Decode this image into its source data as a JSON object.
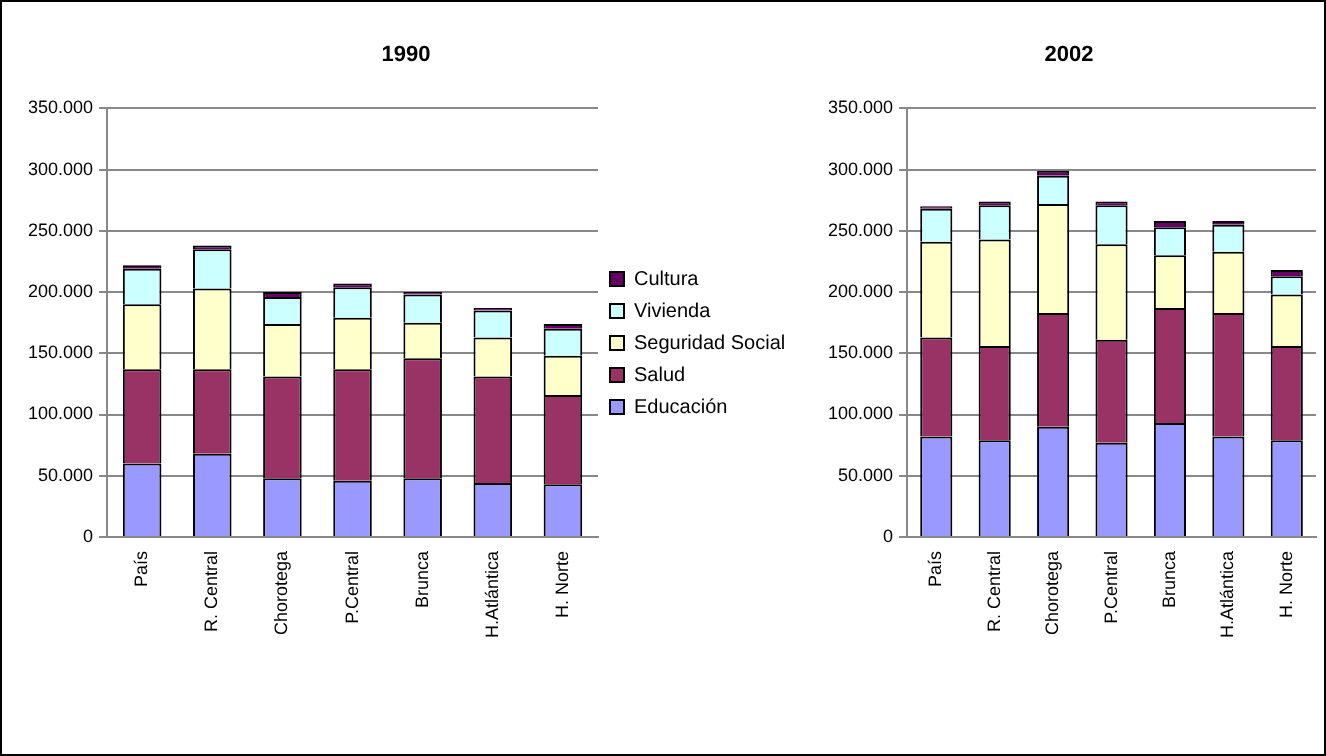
{
  "chart_data": [
    {
      "type": "bar",
      "title": "1990",
      "stacked": true,
      "categories": [
        "País",
        "R. Central",
        "Chorotega",
        "P.Central",
        "Brunca",
        "H.Atlántica",
        "H. Norte"
      ],
      "ylim": [
        0,
        350000
      ],
      "yticks": [
        0,
        {
          "value": 50000,
          "label": "50.000"
        },
        {
          "value": 100000,
          "label": "100.000"
        },
        {
          "value": 150000,
          "label": "150.000"
        },
        {
          "value": 200000,
          "label": "200.000"
        },
        {
          "value": 250000,
          "label": "250.000"
        },
        {
          "value": 300000,
          "label": "300.000"
        },
        {
          "value": 350000,
          "label": "350.000"
        }
      ],
      "grid": "y",
      "legend": "right",
      "series": [
        {
          "name": "Educación",
          "color": "#9999ff",
          "values": [
            60000,
            68000,
            48000,
            46000,
            48000,
            44000,
            43000
          ]
        },
        {
          "name": "Salud",
          "color": "#993366",
          "values": [
            77000,
            69000,
            83000,
            91000,
            98000,
            87000,
            73000
          ]
        },
        {
          "name": "Seguridad Social",
          "color": "#ffffcc",
          "values": [
            53000,
            66000,
            43000,
            42000,
            29000,
            32000,
            32000
          ]
        },
        {
          "name": "Vivienda",
          "color": "#ccffff",
          "values": [
            29000,
            32000,
            22000,
            25000,
            23000,
            22000,
            22000
          ]
        },
        {
          "name": "Cultura",
          "color": "#660066",
          "values": [
            3000,
            3000,
            4000,
            3000,
            2000,
            2000,
            4000
          ]
        }
      ]
    },
    {
      "type": "bar",
      "title": "2002",
      "stacked": true,
      "categories": [
        "País",
        "R. Central",
        "Chorotega",
        "P.Central",
        "Brunca",
        "H.Atlántica",
        "H. Norte"
      ],
      "ylim": [
        0,
        350000
      ],
      "yticks": [
        0,
        {
          "value": 50000,
          "label": "50.000"
        },
        {
          "value": 100000,
          "label": "100.000"
        },
        {
          "value": 150000,
          "label": "150.000"
        },
        {
          "value": 200000,
          "label": "200.000"
        },
        {
          "value": 250000,
          "label": "250.000"
        },
        {
          "value": 300000,
          "label": "300.000"
        },
        {
          "value": 350000,
          "label": "350.000"
        }
      ],
      "grid": "y",
      "legend": false,
      "series": [
        {
          "color": "#9999ff",
          "values": [
            82000,
            79000,
            90000,
            77000,
            93000,
            82000,
            79000
          ]
        },
        {
          "color": "#993366",
          "values": [
            81000,
            77000,
            93000,
            84000,
            94000,
            101000,
            77000
          ]
        },
        {
          "color": "#ffffcc",
          "values": [
            78000,
            87000,
            89000,
            78000,
            43000,
            50000,
            42000
          ]
        },
        {
          "color": "#ccffff",
          "values": [
            27000,
            28000,
            23000,
            32000,
            23000,
            22000,
            15000
          ]
        },
        {
          "color": "#660066",
          "values": [
            2000,
            3000,
            4000,
            3000,
            5000,
            3000,
            5000
          ]
        }
      ]
    }
  ]
}
